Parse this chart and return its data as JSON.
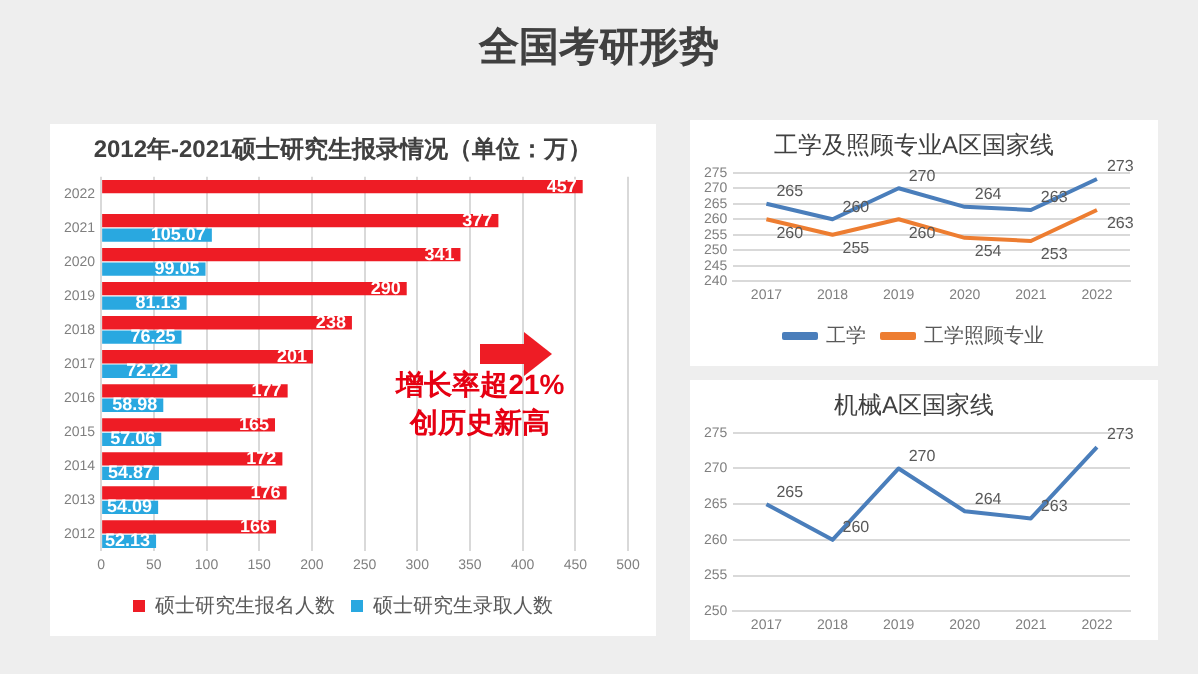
{
  "chart_data": [
    {
      "type": "other",
      "title": "全国考研形势"
    },
    {
      "type": "bar",
      "title": "2012年-2021硕士研究生报录情况（单位：万）",
      "orientation": "horizontal",
      "categories": [
        "2022",
        "2021",
        "2020",
        "2019",
        "2018",
        "2017",
        "2016",
        "2015",
        "2014",
        "2013",
        "2012"
      ],
      "series": [
        {
          "name": "硕士研究生报名人数",
          "color": "#ee1c25",
          "values": [
            457,
            377,
            341,
            290,
            238,
            201,
            177,
            165,
            172,
            176,
            166
          ]
        },
        {
          "name": "硕士研究生录取人数",
          "color": "#29a8e0",
          "values": [
            null,
            105.07,
            99.05,
            81.13,
            76.25,
            72.22,
            58.98,
            57.06,
            54.87,
            54.09,
            52.13
          ]
        }
      ],
      "xlim": [
        0,
        500
      ],
      "xticks": [
        0,
        50,
        100,
        150,
        200,
        250,
        300,
        350,
        400,
        450,
        500
      ],
      "grid": "x",
      "legend": "bottom",
      "data_labels": true,
      "annotations": [
        "增长率超21%",
        "创历史新高"
      ]
    },
    {
      "type": "line",
      "title": "工学及照顾专业A区国家线",
      "categories": [
        "2017",
        "2018",
        "2019",
        "2020",
        "2021",
        "2022"
      ],
      "series": [
        {
          "name": "工学",
          "color": "#4a7ebb",
          "values": [
            265,
            260,
            270,
            264,
            263,
            273
          ]
        },
        {
          "name": "工学照顾专业",
          "color": "#ed7d31",
          "values": [
            260,
            255,
            260,
            254,
            253,
            263
          ]
        }
      ],
      "ylim": [
        240,
        275
      ],
      "yticks": [
        240,
        245,
        250,
        255,
        260,
        265,
        270,
        275
      ],
      "grid": "y",
      "legend": "bottom",
      "data_labels": true,
      "marker": "none"
    },
    {
      "type": "line",
      "title": "机械A区国家线",
      "categories": [
        "2017",
        "2018",
        "2019",
        "2020",
        "2021",
        "2022"
      ],
      "series": [
        {
          "color": "#4a7ebb",
          "values": [
            265,
            260,
            270,
            264,
            263,
            273
          ]
        }
      ],
      "ylim": [
        250,
        275
      ],
      "yticks": [
        250,
        255,
        260,
        265,
        270,
        275
      ],
      "grid": "y",
      "legend": false,
      "data_labels": true,
      "marker": "none"
    }
  ]
}
